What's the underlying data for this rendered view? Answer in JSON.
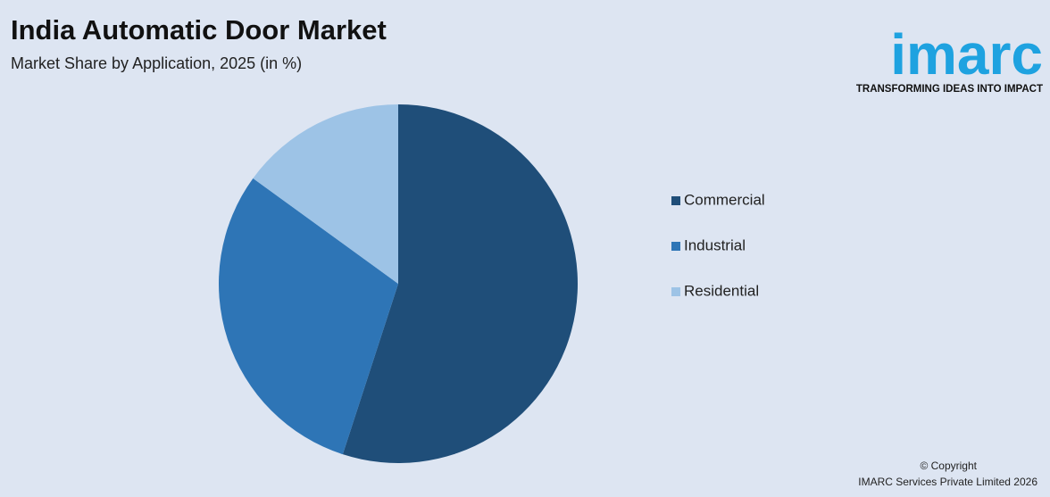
{
  "chart_data": {
    "type": "pie",
    "title": "India Automatic Door Market",
    "subtitle": "Market Share by Application, 2025 (in %)",
    "categories": [
      "Commercial",
      "Industrial",
      "Residential"
    ],
    "values": [
      55,
      30,
      15
    ],
    "colors": [
      "#1f4e79",
      "#2e75b6",
      "#9dc3e6"
    ],
    "legend": "right"
  },
  "logo": {
    "name": "imarc",
    "tagline": "TRANSFORMING IDEAS INTO IMPACT"
  },
  "footer": {
    "copyright": "© Copyright",
    "company": "IMARC Services Private Limited 2026"
  }
}
